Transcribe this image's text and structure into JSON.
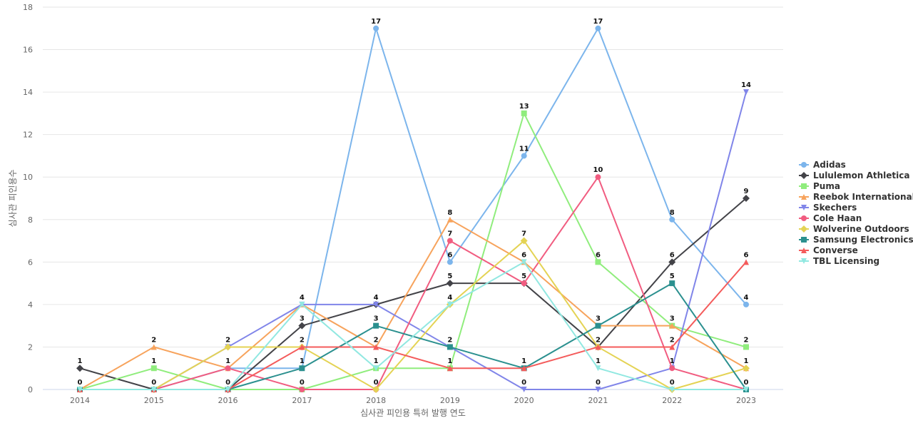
{
  "chart_data": {
    "type": "line",
    "title": "",
    "xlabel": "심사관 피인용 특허 발행 연도",
    "ylabel": "심사관 피인용수",
    "x": [
      "2014",
      "2015",
      "2016",
      "2017",
      "2018",
      "2019",
      "2020",
      "2021",
      "2022",
      "2023"
    ],
    "ylim": [
      0,
      18
    ],
    "yticks": [
      0,
      2,
      4,
      6,
      8,
      10,
      12,
      14,
      16,
      18
    ],
    "grid": true,
    "legend_position": "right",
    "series": [
      {
        "name": "Adidas",
        "color": "#7cb5ec",
        "marker": "circle",
        "values": [
          0,
          0,
          1,
          1,
          17,
          6,
          11,
          17,
          8,
          4
        ]
      },
      {
        "name": "Lululemon Athletica",
        "color": "#434348",
        "marker": "diamond",
        "values": [
          1,
          0,
          0,
          3,
          4,
          5,
          5,
          2,
          6,
          9
        ]
      },
      {
        "name": "Puma",
        "color": "#90ed7d",
        "marker": "square",
        "values": [
          0,
          1,
          0,
          0,
          1,
          1,
          13,
          6,
          3,
          2
        ]
      },
      {
        "name": "Reebok International",
        "color": "#f7a35c",
        "marker": "triangle",
        "values": [
          0,
          2,
          1,
          4,
          2,
          8,
          6,
          3,
          3,
          1
        ]
      },
      {
        "name": "Skechers",
        "color": "#8085e9",
        "marker": "triangle-down",
        "values": [
          0,
          0,
          2,
          4,
          4,
          2,
          0,
          0,
          1,
          14
        ]
      },
      {
        "name": "Cole Haan",
        "color": "#f15c80",
        "marker": "circle",
        "values": [
          0,
          0,
          1,
          0,
          0,
          7,
          5,
          10,
          1,
          0
        ]
      },
      {
        "name": "Wolverine Outdoors",
        "color": "#e4d354",
        "marker": "diamond",
        "values": [
          0,
          0,
          2,
          2,
          0,
          4,
          7,
          2,
          0,
          1
        ]
      },
      {
        "name": "Samsung Electronics",
        "color": "#2b908f",
        "marker": "square",
        "values": [
          0,
          0,
          0,
          1,
          3,
          2,
          1,
          3,
          5,
          0
        ]
      },
      {
        "name": "Converse",
        "color": "#f45b5b",
        "marker": "triangle",
        "values": [
          0,
          0,
          0,
          2,
          2,
          1,
          1,
          2,
          2,
          6
        ]
      },
      {
        "name": "TBL Licensing",
        "color": "#91e8e1",
        "marker": "triangle-down",
        "values": [
          0,
          0,
          0,
          4,
          1,
          4,
          6,
          1,
          0,
          0
        ]
      }
    ]
  }
}
